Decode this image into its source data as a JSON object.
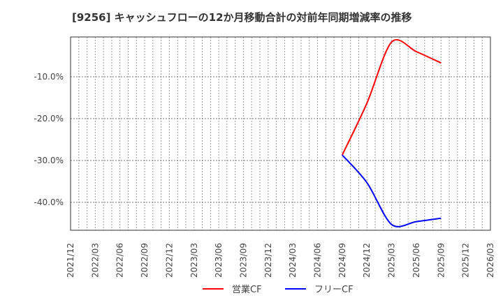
{
  "title": "[9256]  キャッシュフローの12か月移動合計の対前年同期増減率の推移",
  "chart_data": {
    "type": "line",
    "title": "[9256]  キャッシュフローの12か月移動合計の対前年同期増減率の推移",
    "xlabel": "",
    "ylabel": "",
    "x_ticks": [
      "2021/12",
      "2022/03",
      "2022/06",
      "2022/09",
      "2022/12",
      "2023/03",
      "2023/06",
      "2023/09",
      "2023/12",
      "2024/03",
      "2024/06",
      "2024/09",
      "2024/12",
      "2025/03",
      "2025/06",
      "2025/09",
      "2025/12",
      "2026/03"
    ],
    "y_ticks": [
      -10.0,
      -20.0,
      -30.0,
      -40.0
    ],
    "y_tick_labels": [
      "-10.0%",
      "-20.0%",
      "-30.0%",
      "-40.0%"
    ],
    "ylim": [
      -46.7,
      -0.5
    ],
    "grid": true,
    "legend_position": "bottom",
    "x": [
      "2024/09",
      "2024/12",
      "2025/03",
      "2025/06",
      "2025/09"
    ],
    "series": [
      {
        "name": "営業CF",
        "color": "#ff0000",
        "values": [
          -28.7,
          -16.3,
          -1.7,
          -4.0,
          -6.7
        ]
      },
      {
        "name": "フリーCF",
        "color": "#0000ff",
        "values": [
          -28.7,
          -35.3,
          -45.3,
          -44.6,
          -43.8
        ]
      }
    ]
  },
  "legend": {
    "items": [
      {
        "label": "営業CF",
        "color": "#ff0000"
      },
      {
        "label": "フリーCF",
        "color": "#0000ff"
      }
    ]
  }
}
